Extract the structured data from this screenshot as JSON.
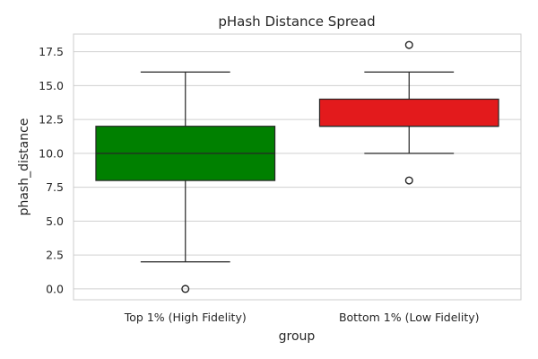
{
  "chart_data": {
    "type": "box",
    "title": "pHash Distance Spread",
    "xlabel": "group",
    "ylabel": "phash_distance",
    "ylim": [
      -0.8,
      18.8
    ],
    "yticks": [
      0.0,
      2.5,
      5.0,
      7.5,
      10.0,
      12.5,
      15.0,
      17.5
    ],
    "ytick_labels": [
      "0.0",
      "2.5",
      "5.0",
      "7.5",
      "10.0",
      "12.5",
      "15.0",
      "17.5"
    ],
    "grid": true,
    "categories": [
      "Top 1% (High Fidelity)",
      "Bottom 1% (Low Fidelity)"
    ],
    "boxes": [
      {
        "category": "Top 1% (High Fidelity)",
        "color": "#008000",
        "whisker_low": 2,
        "q1": 8,
        "median": 10,
        "q3": 12,
        "whisker_high": 16,
        "outliers": [
          0
        ]
      },
      {
        "category": "Bottom 1% (Low Fidelity)",
        "color": "#e31a1c",
        "whisker_low": 10,
        "q1": 12,
        "median": 12,
        "q3": 14,
        "whisker_high": 16,
        "outliers": [
          8,
          18
        ]
      }
    ]
  }
}
